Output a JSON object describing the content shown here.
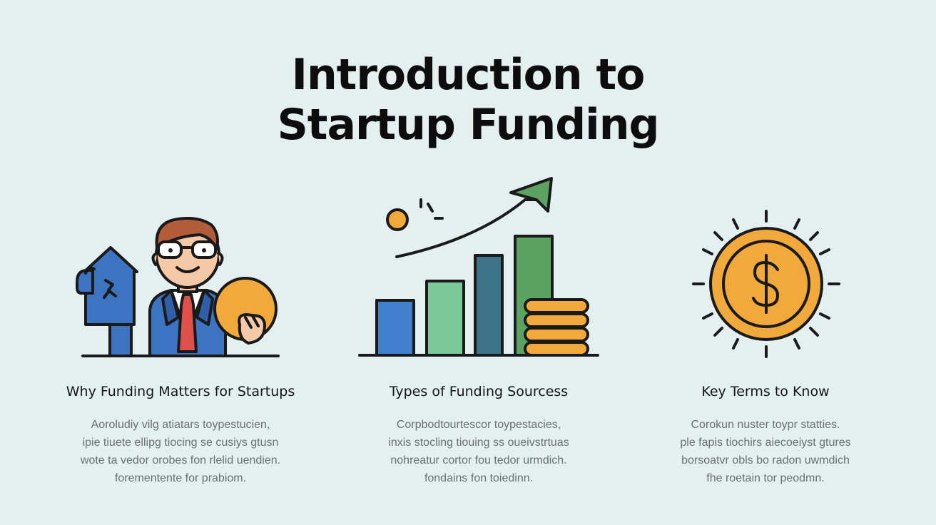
{
  "title": {
    "line1": "Introduction to",
    "line2": "Startup Funding"
  },
  "columns": [
    {
      "heading": "Why Funding Matters for Startups",
      "icon": "businessman-with-house-and-coin-icon",
      "body": [
        "Aoroludiy vilg atiatars toypestucien,",
        "ipie tiuete ellipg tiocing se cusiys gtusn",
        "wote ta vedor orobes fon rlelid uendien.",
        "forementente for prabiom."
      ]
    },
    {
      "heading": "Types of Funding Sourcess",
      "icon": "growth-bar-chart-with-coins-icon",
      "body": [
        "Corpbodtourtescor toypestacies,",
        "inxis stocling tiouing ss oueivstrtuas",
        "nohreatur cortor fou tedor urmdich.",
        "fondains fon toiedinn."
      ]
    },
    {
      "heading": "Key Terms to Know",
      "icon": "dollar-coin-icon",
      "body": [
        "Corokun nuster toypr statties.",
        "ple fapis tiochirs aiecoeiyst gtures",
        "borsoatvr obls bo radon uwmdich",
        "fhe roetain tor peodmn."
      ]
    }
  ],
  "colors": {
    "background": "#e4f0ef",
    "blue": "#3f7fcb",
    "green_light": "#7cc797",
    "teal": "#3e7488",
    "green": "#5ca263",
    "gold": "#f0a93a",
    "red_tie": "#e0504a"
  }
}
